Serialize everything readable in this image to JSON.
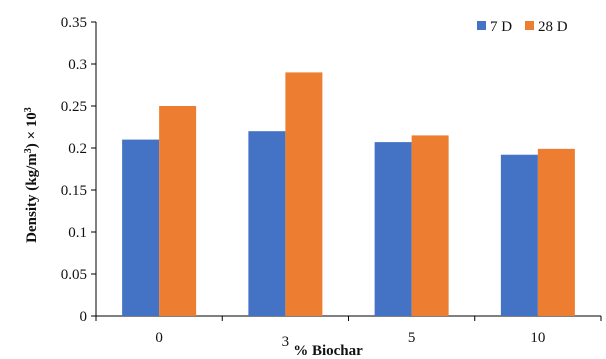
{
  "chart_data": {
    "type": "bar",
    "title": "",
    "xlabel": "% Biochar",
    "ylabel_main": "Density (kg/m",
    "ylabel_sup": "3",
    "ylabel_mid": ") × 10",
    "ylabel_sup2": "3",
    "categories": [
      "0",
      "3",
      "5",
      "10"
    ],
    "series": [
      {
        "name": "7 D",
        "color": "#4472C4",
        "values": [
          0.21,
          0.22,
          0.207,
          0.192
        ]
      },
      {
        "name": "28 D",
        "color": "#ED7D31",
        "values": [
          0.25,
          0.29,
          0.215,
          0.199
        ]
      }
    ],
    "ylim": [
      0,
      0.35
    ],
    "yticks": [
      "0",
      "0.05",
      "0.1",
      "0.15",
      "0.2",
      "0.25",
      "0.3",
      "0.35"
    ],
    "grid": false,
    "legend_position": "top-right"
  }
}
